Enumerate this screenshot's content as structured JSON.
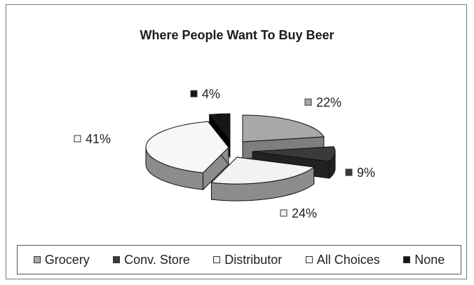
{
  "chart_data": {
    "type": "pie",
    "title": "Where People Want To Buy Beer",
    "categories": [
      "Grocery",
      "Conv. Store",
      "Distributor",
      "All Choices",
      "None"
    ],
    "values": [
      22,
      9,
      24,
      41,
      4
    ],
    "value_labels": [
      "22%",
      "9%",
      "24%",
      "41%",
      "4%"
    ],
    "colors": [
      "#a8a8a8",
      "#3a3a3a",
      "#f2f2f2",
      "#f7f7f7",
      "#161616"
    ],
    "side_colors": [
      "#7e7e7e",
      "#222222",
      "#8c8c8c",
      "#8c8c8c",
      "#000000"
    ],
    "exploded": true,
    "three_d": true,
    "legend_position": "bottom"
  }
}
